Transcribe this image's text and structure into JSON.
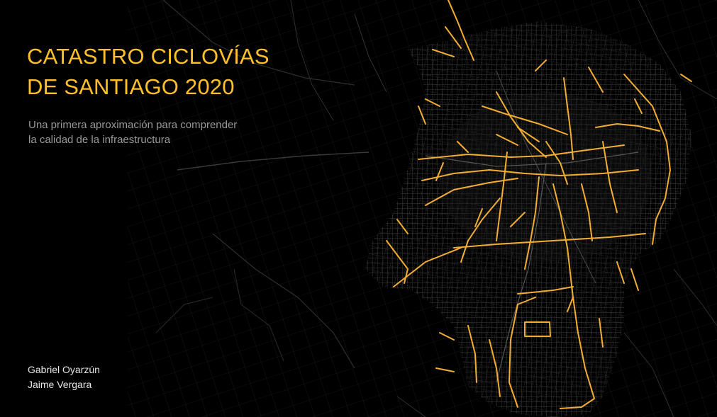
{
  "title": {
    "line1": "CATASTRO CICLOVÍAS",
    "line2": "DE SANTIAGO 2020"
  },
  "subtitle": {
    "line1": "Una primera aproximación para comprender",
    "line2": "la calidad de la infraestructura"
  },
  "authors": [
    "Gabriel Oyarzún",
    "Jaime Vergara"
  ],
  "colors": {
    "background": "#000000",
    "title": "#ffc02a",
    "bike_lanes": "#f2ad33",
    "street_network": "#4a4a4a",
    "subtitle": "#9a9a9a",
    "authors": "#e6e6e6"
  }
}
